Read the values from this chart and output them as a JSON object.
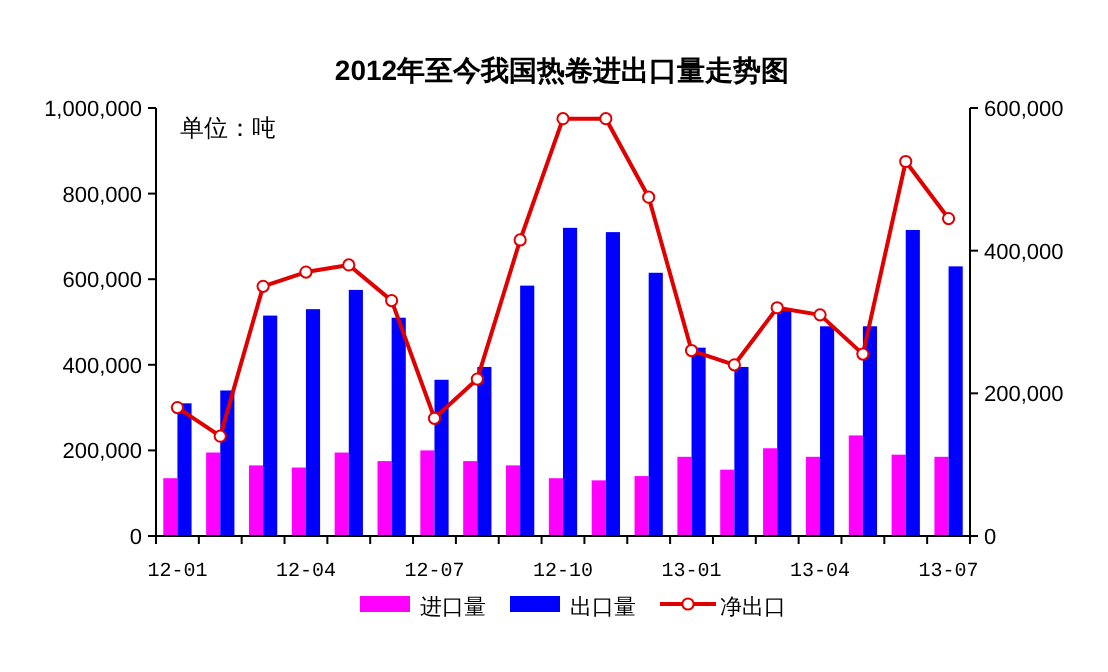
{
  "chart_data": {
    "type": "bar",
    "title": "2012年至今我国热卷进出口量走势图",
    "annotations": [
      "单位：吨"
    ],
    "categories": [
      "12-01",
      null,
      null,
      "12-04",
      null,
      null,
      "12-07",
      null,
      null,
      "12-10",
      null,
      null,
      "13-01",
      null,
      null,
      "13-04",
      null,
      null,
      "13-07"
    ],
    "series": [
      {
        "name": "进口量",
        "color": "#ff00ff",
        "values": [
          135000,
          195000,
          165000,
          160000,
          195000,
          175000,
          200000,
          175000,
          165000,
          135000,
          130000,
          140000,
          185000,
          155000,
          205000,
          185000,
          235000,
          190000,
          185000
        ]
      },
      {
        "name": "出口量",
        "color": "#0000ff",
        "values": [
          310000,
          340000,
          515000,
          530000,
          575000,
          510000,
          365000,
          395000,
          585000,
          720000,
          710000,
          615000,
          440000,
          395000,
          530000,
          490000,
          490000,
          715000,
          630000
        ]
      },
      {
        "name": "净出口",
        "type": "line",
        "axis": "y2",
        "color": "#e00000",
        "marker": "circle",
        "values": [
          180000,
          140000,
          350000,
          370000,
          380000,
          330000,
          165000,
          220000,
          415000,
          585000,
          585000,
          475000,
          260000,
          240000,
          320000,
          310000,
          255000,
          525000,
          445000
        ]
      }
    ],
    "ylim": [
      0,
      1000000
    ],
    "yticks": [
      {
        "value": 0,
        "label": "0"
      },
      {
        "value": 200000,
        "label": "200,000"
      },
      {
        "value": 400000,
        "label": "400,000"
      },
      {
        "value": 600000,
        "label": "600,000"
      },
      {
        "value": 800000,
        "label": "800,000"
      },
      {
        "value": 1000000,
        "label": "1,000,000"
      }
    ],
    "y2lim": [
      0,
      600000
    ],
    "y2ticks": [
      {
        "value": 0,
        "label": "0"
      },
      {
        "value": 200000,
        "label": "200,000"
      },
      {
        "value": 400000,
        "label": "400,000"
      },
      {
        "value": 600000,
        "label": "600,000"
      }
    ],
    "legend": "bottom",
    "grid": false
  }
}
